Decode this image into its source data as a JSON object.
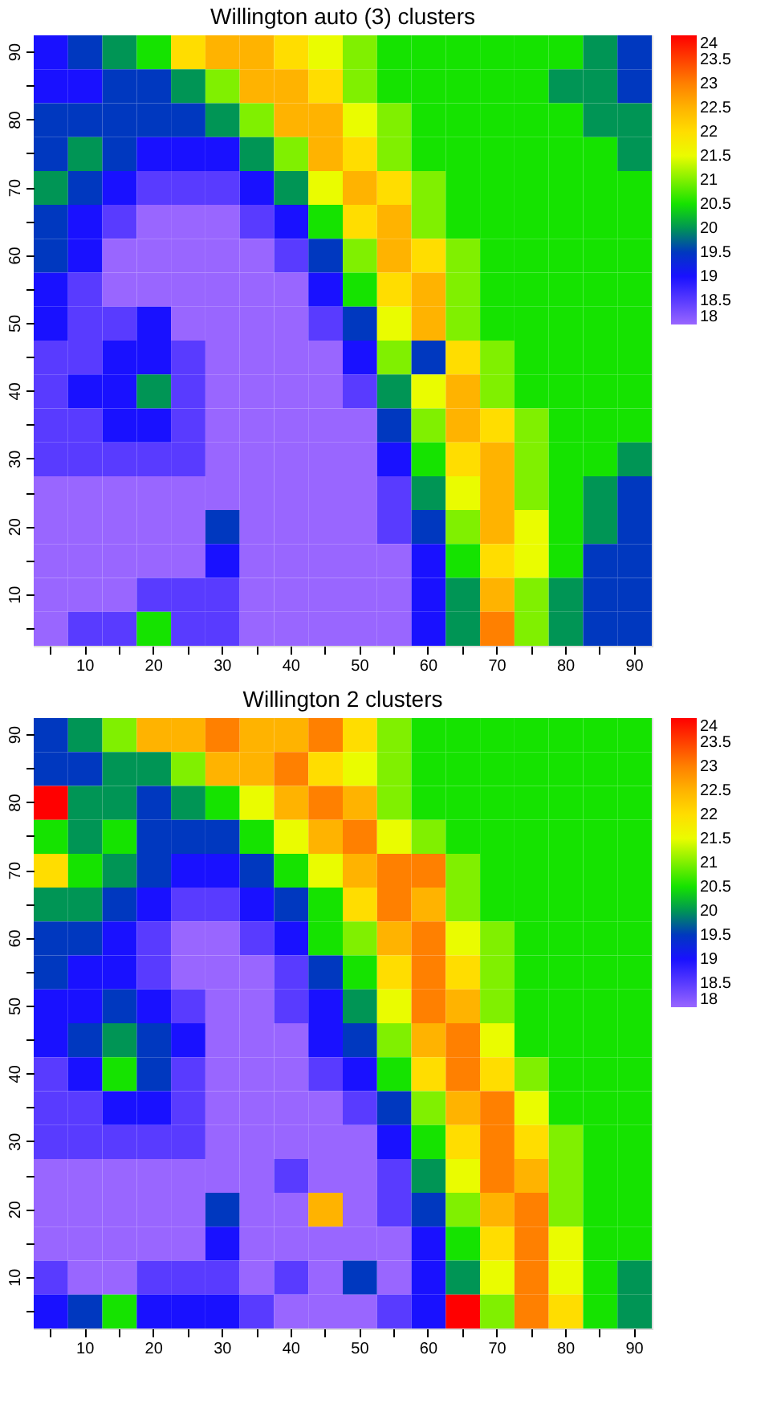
{
  "chart_data": [
    {
      "type": "heatmap",
      "title": "Willington auto (3) clusters",
      "categories": [
        null,
        "10",
        null,
        "20",
        null,
        "30",
        null,
        "40",
        null,
        "50",
        null,
        "60",
        null,
        "70",
        null,
        "80",
        null,
        "90"
      ],
      "y_categories": [
        "90",
        null,
        "80",
        null,
        "70",
        null,
        "60",
        null,
        "50",
        null,
        "40",
        null,
        "30",
        null,
        "20",
        null,
        "10",
        null
      ],
      "clim": [
        18,
        24
      ],
      "cticks": [
        18,
        18.5,
        19,
        19.5,
        20,
        20.5,
        21,
        21.5,
        22,
        22.5,
        23,
        23.5,
        24
      ],
      "colors": [
        "#9966ff",
        "#0000ff",
        "#00e000",
        "#ffff00",
        "#ff9900",
        "#ff0000"
      ],
      "cells": [
        [
          19,
          19.5,
          20,
          20.5,
          22,
          22.5,
          22.5,
          22,
          21.5,
          21,
          20.5,
          20.5,
          20.5,
          20.5,
          20.5,
          20.5,
          20,
          19.5
        ],
        [
          19,
          19,
          19.5,
          19.5,
          20,
          21,
          22.5,
          22.5,
          22,
          21,
          20.5,
          20.5,
          20.5,
          20.5,
          20.5,
          20,
          20,
          19.5
        ],
        [
          19.5,
          19.5,
          19.5,
          19.5,
          19.5,
          20,
          21,
          22.5,
          22.5,
          21.5,
          21,
          20.5,
          20.5,
          20.5,
          20.5,
          20.5,
          20,
          20
        ],
        [
          19.5,
          20,
          19.5,
          19,
          19,
          19,
          20,
          21,
          22.5,
          22,
          21,
          20.5,
          20.5,
          20.5,
          20.5,
          20.5,
          20.5,
          20
        ],
        [
          20,
          19.5,
          19,
          18.5,
          18.5,
          18.5,
          19,
          20,
          21.5,
          22.5,
          22,
          21,
          20.5,
          20.5,
          20.5,
          20.5,
          20.5,
          20.5
        ],
        [
          19.5,
          19,
          18.5,
          18,
          18,
          18,
          18.5,
          19,
          20.5,
          22,
          22.5,
          21,
          20.5,
          20.5,
          20.5,
          20.5,
          20.5,
          20.5
        ],
        [
          19.5,
          19,
          18,
          18,
          18,
          18,
          18,
          18.5,
          19.5,
          21,
          22.5,
          22,
          21,
          20.5,
          20.5,
          20.5,
          20.5,
          20.5
        ],
        [
          19,
          18.5,
          18,
          18,
          18,
          18,
          18,
          18,
          19,
          20.5,
          22,
          22.5,
          21,
          20.5,
          20.5,
          20.5,
          20.5,
          20.5
        ],
        [
          19,
          18.5,
          18.5,
          19,
          18,
          18,
          18,
          18,
          18.5,
          19.5,
          21.5,
          22.5,
          21,
          20.5,
          20.5,
          20.5,
          20.5,
          20.5
        ],
        [
          18.5,
          18.5,
          19,
          19,
          18.5,
          18,
          18,
          18,
          18,
          19,
          21,
          19.5,
          22,
          21,
          20.5,
          20.5,
          20.5,
          20.5
        ],
        [
          18.5,
          19,
          19,
          20,
          18.5,
          18,
          18,
          18,
          18,
          18.5,
          20,
          21.5,
          22.5,
          21,
          20.5,
          20.5,
          20.5,
          20.5
        ],
        [
          18.5,
          18.5,
          19,
          19,
          18.5,
          18,
          18,
          18,
          18,
          18,
          19.5,
          21,
          22.5,
          22,
          21,
          20.5,
          20.5,
          20.5
        ],
        [
          18.5,
          18.5,
          18.5,
          18.5,
          18.5,
          18,
          18,
          18,
          18,
          18,
          19,
          20.5,
          22,
          22.5,
          21,
          20.5,
          20.5,
          20
        ],
        [
          18,
          18,
          18,
          18,
          18,
          18,
          18,
          18,
          18,
          18,
          18.5,
          20,
          21.5,
          22.5,
          21,
          20.5,
          20,
          19.5
        ],
        [
          18,
          18,
          18,
          18,
          18,
          19.5,
          18,
          18,
          18,
          18,
          18.5,
          19.5,
          21,
          22.5,
          21.5,
          20.5,
          20,
          19.5
        ],
        [
          18,
          18,
          18,
          18,
          18,
          19,
          18,
          18,
          18,
          18,
          18,
          19,
          20.5,
          22,
          21.5,
          20.5,
          19.5,
          19.5
        ],
        [
          18,
          18,
          18,
          18.5,
          18.5,
          18.5,
          18,
          18,
          18,
          18,
          18,
          19,
          20,
          22.5,
          21,
          20,
          19.5,
          19.5
        ],
        [
          18,
          18.5,
          18.5,
          20.5,
          18.5,
          18.5,
          18,
          18,
          18,
          18,
          18,
          19,
          20,
          23,
          21,
          20,
          19.5,
          19.5
        ]
      ]
    },
    {
      "type": "heatmap",
      "title": "Willington 2 clusters",
      "categories": [
        null,
        "10",
        null,
        "20",
        null,
        "30",
        null,
        "40",
        null,
        "50",
        null,
        "60",
        null,
        "70",
        null,
        "80",
        null,
        "90"
      ],
      "y_categories": [
        "90",
        null,
        "80",
        null,
        "70",
        null,
        "60",
        null,
        "50",
        null,
        "40",
        null,
        "30",
        null,
        "20",
        null,
        "10",
        null
      ],
      "clim": [
        18,
        24
      ],
      "cticks": [
        18,
        18.5,
        19,
        19.5,
        20,
        20.5,
        21,
        21.5,
        22,
        22.5,
        23,
        23.5,
        24
      ],
      "colors": [
        "#9966ff",
        "#0000ff",
        "#00e000",
        "#ffff00",
        "#ff9900",
        "#ff0000"
      ],
      "cells": [
        [
          19.5,
          20,
          21,
          22.5,
          22.5,
          23,
          22.5,
          22.5,
          23,
          22,
          21,
          20.5,
          20.5,
          20.5,
          20.5,
          20.5,
          20.5,
          20.5
        ],
        [
          19.5,
          19.5,
          20,
          20,
          21,
          22.5,
          22.5,
          23,
          22,
          21.5,
          21,
          20.5,
          20.5,
          20.5,
          20.5,
          20.5,
          20.5,
          20.5
        ],
        [
          24,
          20,
          20,
          19.5,
          20,
          20.5,
          21.5,
          22.5,
          23,
          22.5,
          21,
          20.5,
          20.5,
          20.5,
          20.5,
          20.5,
          20.5,
          20.5
        ],
        [
          20.5,
          20,
          20.5,
          19.5,
          19.5,
          19.5,
          20.5,
          21.5,
          22.5,
          23,
          21.5,
          21,
          20.5,
          20.5,
          20.5,
          20.5,
          20.5,
          20.5
        ],
        [
          22,
          20.5,
          20,
          19.5,
          19,
          19,
          19.5,
          20.5,
          21.5,
          22.5,
          23,
          23,
          21,
          20.5,
          20.5,
          20.5,
          20.5,
          20.5
        ],
        [
          20,
          20,
          19.5,
          19,
          18.5,
          18.5,
          19,
          19.5,
          20.5,
          22,
          23,
          22.5,
          21,
          20.5,
          20.5,
          20.5,
          20.5,
          20.5
        ],
        [
          19.5,
          19.5,
          19,
          18.5,
          18,
          18,
          18.5,
          19,
          20.5,
          21,
          22.5,
          23,
          21.5,
          21,
          20.5,
          20.5,
          20.5,
          20.5
        ],
        [
          19.5,
          19,
          19,
          18.5,
          18,
          18,
          18,
          18.5,
          19.5,
          20.5,
          22,
          23,
          22,
          21,
          20.5,
          20.5,
          20.5,
          20.5
        ],
        [
          19,
          19,
          19.5,
          19,
          18.5,
          18,
          18,
          18.5,
          19,
          20,
          21.5,
          23,
          22.5,
          21,
          20.5,
          20.5,
          20.5,
          20.5
        ],
        [
          19,
          19.5,
          20,
          19.5,
          19,
          18,
          18,
          18,
          19,
          19.5,
          21,
          22.5,
          23,
          21.5,
          20.5,
          20.5,
          20.5,
          20.5
        ],
        [
          18.5,
          19,
          20.5,
          19.5,
          18.5,
          18,
          18,
          18,
          18.5,
          19,
          20.5,
          22,
          23,
          22,
          21,
          20.5,
          20.5,
          20.5
        ],
        [
          18.5,
          18.5,
          19,
          19,
          18.5,
          18,
          18,
          18,
          18,
          18.5,
          19.5,
          21,
          22.5,
          23,
          21.5,
          20.5,
          20.5,
          20.5
        ],
        [
          18.5,
          18.5,
          18.5,
          18.5,
          18.5,
          18,
          18,
          18,
          18,
          18,
          19,
          20.5,
          22,
          23,
          22,
          21,
          20.5,
          20.5
        ],
        [
          18,
          18,
          18,
          18,
          18,
          18,
          18,
          18.5,
          18,
          18,
          18.5,
          20,
          21.5,
          23,
          22.5,
          21,
          20.5,
          20.5
        ],
        [
          18,
          18,
          18,
          18,
          18,
          19.5,
          18,
          18,
          22.5,
          18,
          18.5,
          19.5,
          21,
          22.5,
          23,
          21,
          20.5,
          20.5
        ],
        [
          18,
          18,
          18,
          18,
          18,
          19,
          18,
          18,
          18,
          18,
          18,
          19,
          20.5,
          22,
          23,
          21.5,
          20.5,
          20.5
        ],
        [
          18.5,
          18,
          18,
          18.5,
          18.5,
          18.5,
          18,
          18.5,
          18,
          19.5,
          18,
          19,
          20,
          21.5,
          23,
          21.5,
          20.5,
          20
        ],
        [
          19,
          19.5,
          20.5,
          19,
          19,
          19,
          18.5,
          18,
          18,
          18,
          18.5,
          19,
          24,
          21,
          23,
          22,
          20.5,
          20
        ]
      ]
    }
  ]
}
